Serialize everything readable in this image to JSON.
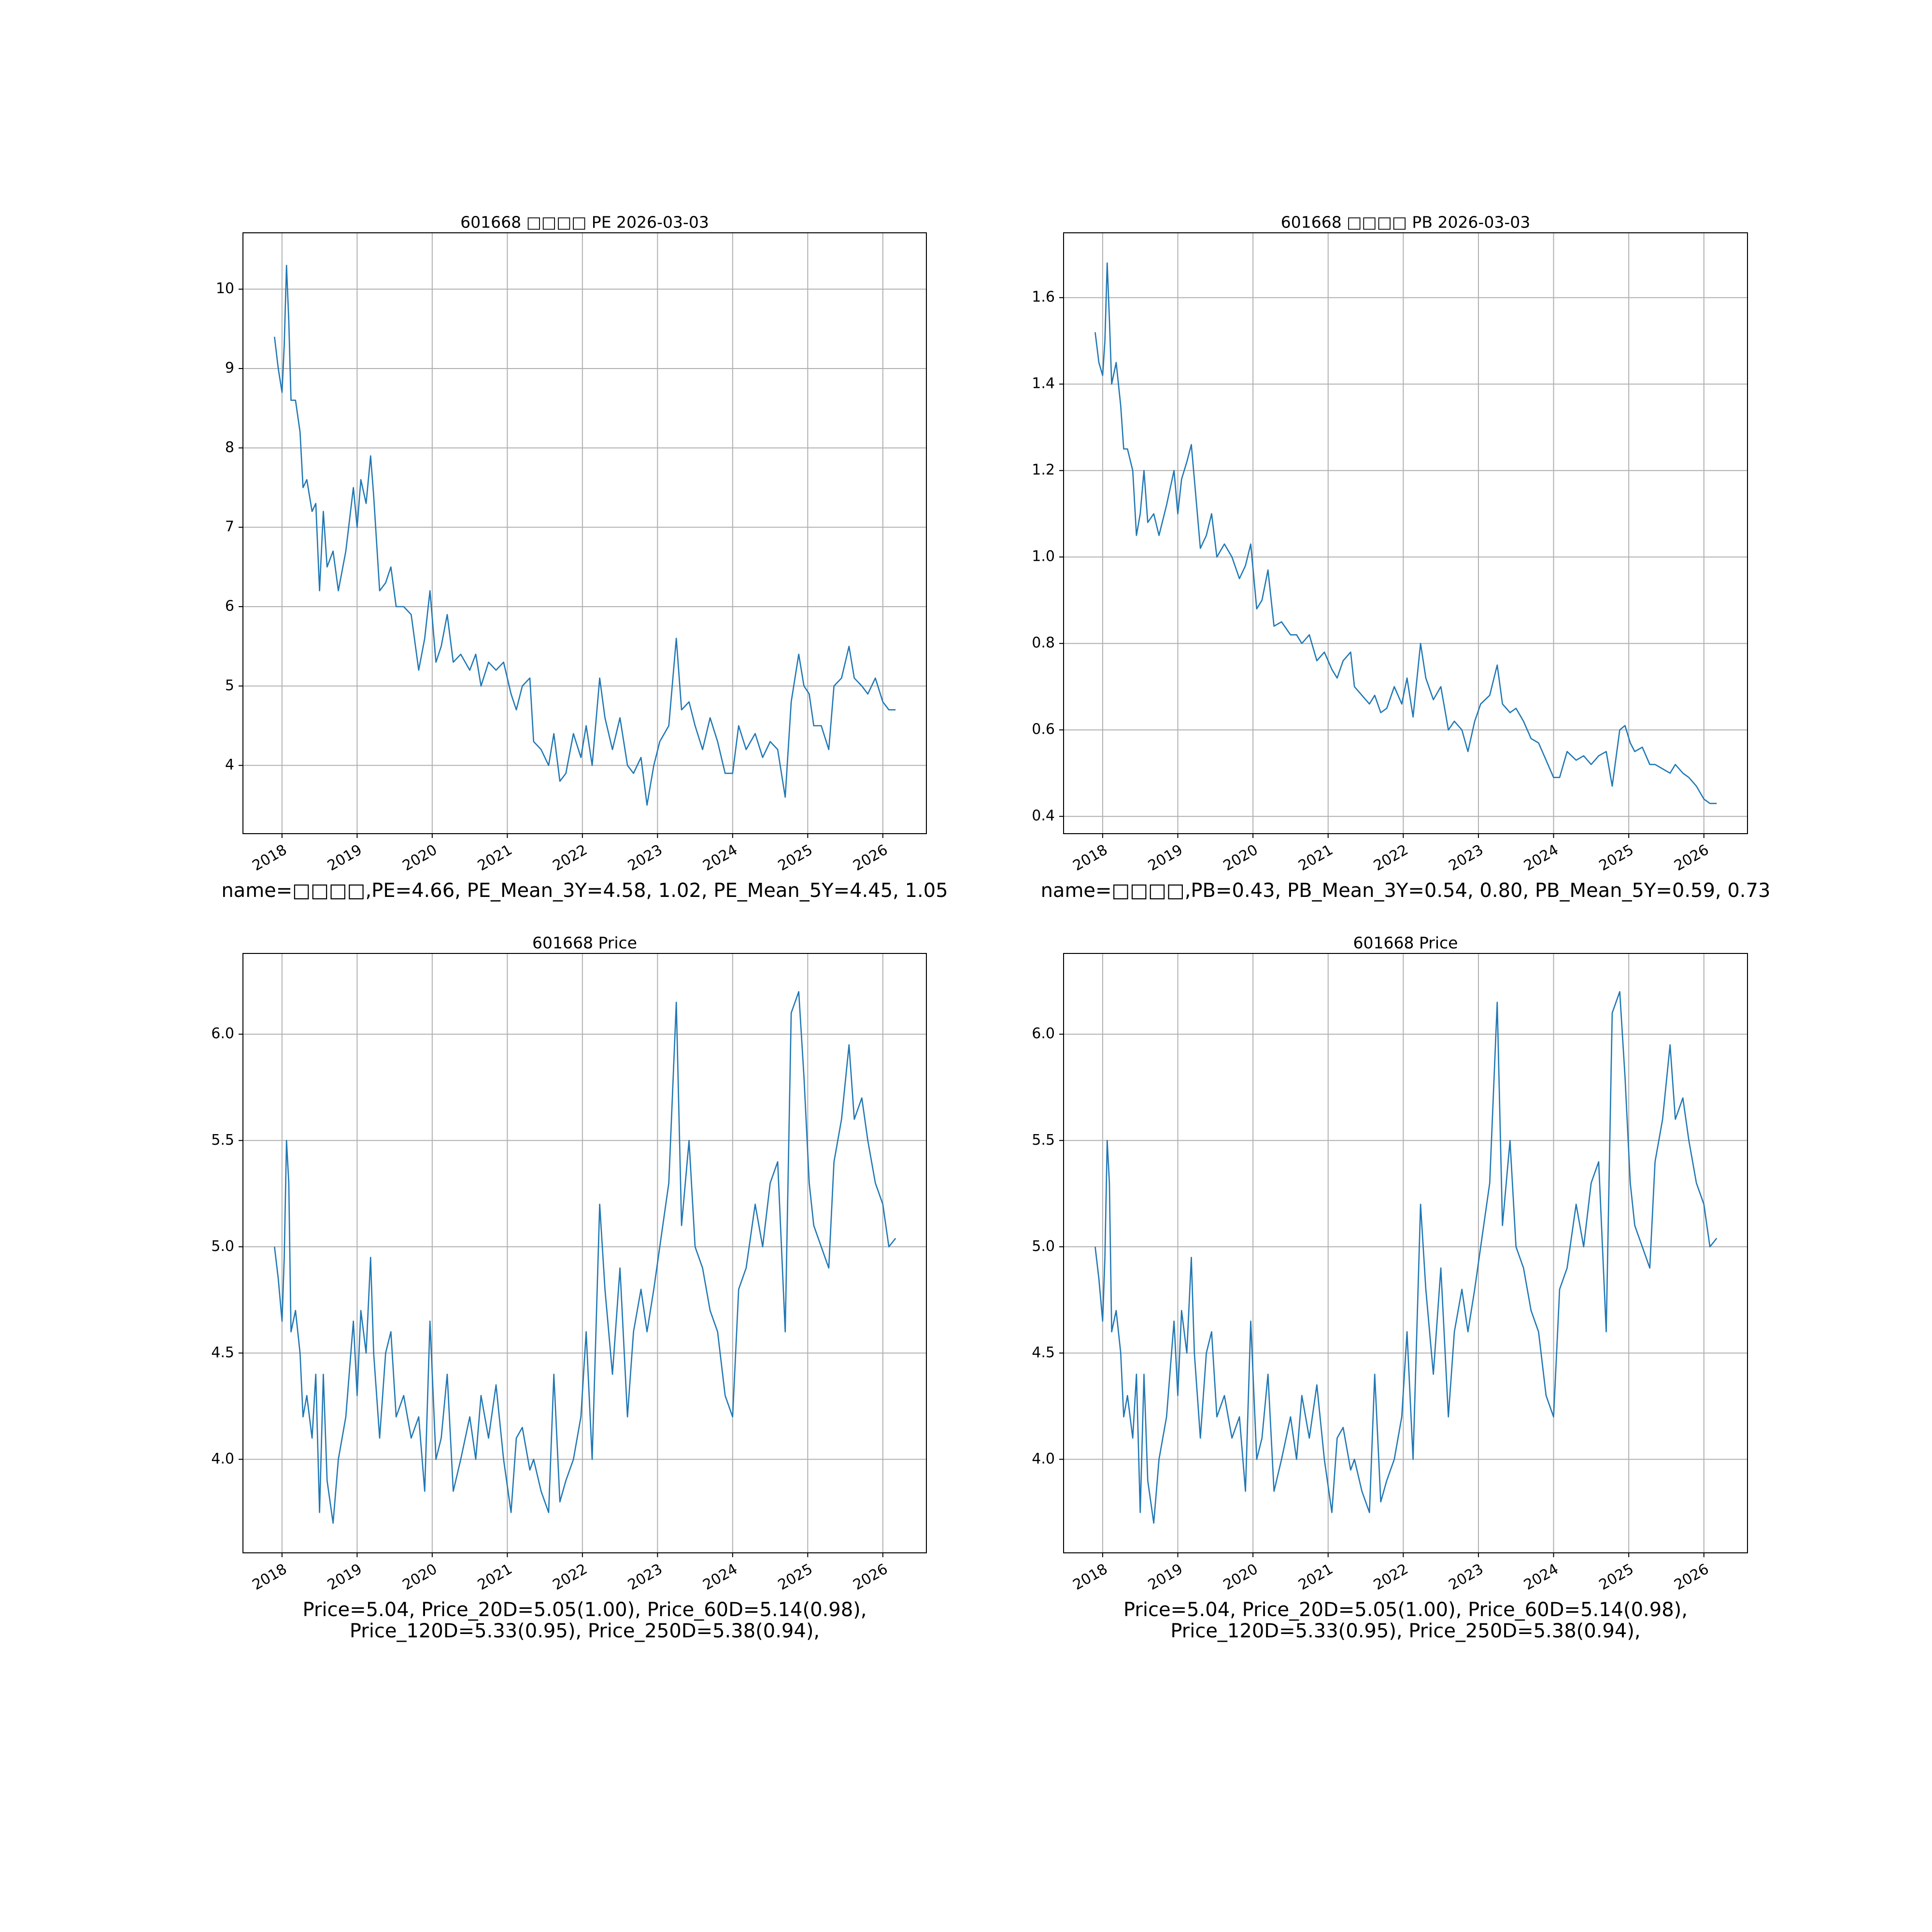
{
  "chart_data": [
    {
      "type": "line",
      "title": "601668 □□□□ PE 2026-03-03",
      "caption": [
        "name=□□□□,PE=4.66, PE_Mean_3Y=4.58, 1.02, PE_Mean_5Y=4.45, 1.05"
      ],
      "color": "#1f77b4",
      "grid": true,
      "xlim": [
        2017.48,
        2026.58
      ],
      "xticks": [
        2018,
        2019,
        2020,
        2021,
        2022,
        2023,
        2024,
        2025,
        2026
      ],
      "ylim": [
        3.14,
        10.71
      ],
      "yticks": [
        4,
        5,
        6,
        7,
        8,
        9,
        10
      ],
      "x": [
        2017.9,
        2017.95,
        2018.0,
        2018.03,
        2018.06,
        2018.09,
        2018.12,
        2018.18,
        2018.24,
        2018.28,
        2018.33,
        2018.4,
        2018.45,
        2018.5,
        2018.55,
        2018.6,
        2018.68,
        2018.75,
        2018.85,
        2018.95,
        2019.0,
        2019.05,
        2019.12,
        2019.18,
        2019.22,
        2019.3,
        2019.38,
        2019.45,
        2019.52,
        2019.62,
        2019.72,
        2019.82,
        2019.9,
        2019.97,
        2020.05,
        2020.12,
        2020.2,
        2020.28,
        2020.38,
        2020.5,
        2020.58,
        2020.65,
        2020.75,
        2020.85,
        2020.95,
        2021.05,
        2021.12,
        2021.2,
        2021.3,
        2021.35,
        2021.45,
        2021.55,
        2021.62,
        2021.7,
        2021.78,
        2021.88,
        2021.98,
        2022.05,
        2022.13,
        2022.23,
        2022.3,
        2022.4,
        2022.5,
        2022.6,
        2022.68,
        2022.78,
        2022.86,
        2022.95,
        2023.03,
        2023.15,
        2023.25,
        2023.32,
        2023.42,
        2023.5,
        2023.6,
        2023.7,
        2023.8,
        2023.9,
        2024.0,
        2024.08,
        2024.18,
        2024.3,
        2024.4,
        2024.5,
        2024.6,
        2024.7,
        2024.78,
        2024.88,
        2024.95,
        2025.02,
        2025.08,
        2025.18,
        2025.28,
        2025.35,
        2025.45,
        2025.55,
        2025.62,
        2025.72,
        2025.8,
        2025.9,
        2026.0,
        2026.08,
        2026.17
      ],
      "values": [
        9.4,
        9.0,
        8.7,
        9.3,
        10.3,
        9.6,
        8.6,
        8.6,
        8.2,
        7.5,
        7.6,
        7.2,
        7.3,
        6.2,
        7.2,
        6.5,
        6.7,
        6.2,
        6.7,
        7.5,
        7.0,
        7.6,
        7.3,
        7.9,
        7.4,
        6.2,
        6.3,
        6.5,
        6.0,
        6.0,
        5.9,
        5.2,
        5.6,
        6.2,
        5.3,
        5.5,
        5.9,
        5.3,
        5.4,
        5.2,
        5.4,
        5.0,
        5.3,
        5.2,
        5.3,
        4.9,
        4.7,
        5.0,
        5.1,
        4.3,
        4.2,
        4.0,
        4.4,
        3.8,
        3.9,
        4.4,
        4.1,
        4.5,
        4.0,
        5.1,
        4.6,
        4.2,
        4.6,
        4.0,
        3.9,
        4.1,
        3.5,
        4.0,
        4.3,
        4.5,
        5.6,
        4.7,
        4.8,
        4.5,
        4.2,
        4.6,
        4.3,
        3.9,
        3.9,
        4.5,
        4.2,
        4.4,
        4.1,
        4.3,
        4.2,
        3.6,
        4.8,
        5.4,
        5.0,
        4.9,
        4.5,
        4.5,
        4.2,
        5.0,
        5.1,
        5.5,
        5.1,
        5.0,
        4.9,
        5.1,
        4.8,
        4.7,
        4.7
      ]
    },
    {
      "type": "line",
      "title": "601668 □□□□ PB 2026-03-03",
      "caption": [
        "name=□□□□,PB=0.43, PB_Mean_3Y=0.54, 0.80, PB_Mean_5Y=0.59, 0.73"
      ],
      "color": "#1f77b4",
      "grid": true,
      "xlim": [
        2017.48,
        2026.58
      ],
      "xticks": [
        2018,
        2019,
        2020,
        2021,
        2022,
        2023,
        2024,
        2025,
        2026
      ],
      "ylim": [
        0.36,
        1.75
      ],
      "yticks": [
        0.4,
        0.6,
        0.8,
        {
          "value": 1,
          "label": "1.0"
        },
        1.2,
        1.4,
        1.6
      ],
      "x": [
        2017.9,
        2017.95,
        2018.0,
        2018.03,
        2018.06,
        2018.09,
        2018.12,
        2018.18,
        2018.24,
        2018.28,
        2018.33,
        2018.4,
        2018.45,
        2018.5,
        2018.55,
        2018.6,
        2018.68,
        2018.75,
        2018.85,
        2018.95,
        2019.0,
        2019.05,
        2019.12,
        2019.18,
        2019.22,
        2019.3,
        2019.38,
        2019.45,
        2019.52,
        2019.62,
        2019.72,
        2019.82,
        2019.9,
        2019.97,
        2020.05,
        2020.12,
        2020.2,
        2020.28,
        2020.38,
        2020.5,
        2020.58,
        2020.65,
        2020.75,
        2020.85,
        2020.95,
        2021.05,
        2021.12,
        2021.2,
        2021.3,
        2021.35,
        2021.45,
        2021.55,
        2021.62,
        2021.7,
        2021.78,
        2021.88,
        2021.98,
        2022.05,
        2022.13,
        2022.23,
        2022.3,
        2022.4,
        2022.5,
        2022.6,
        2022.68,
        2022.78,
        2022.86,
        2022.95,
        2023.03,
        2023.15,
        2023.25,
        2023.32,
        2023.42,
        2023.5,
        2023.6,
        2023.7,
        2023.8,
        2023.9,
        2024.0,
        2024.08,
        2024.18,
        2024.3,
        2024.4,
        2024.5,
        2024.6,
        2024.7,
        2024.78,
        2024.88,
        2024.95,
        2025.02,
        2025.08,
        2025.18,
        2025.28,
        2025.35,
        2025.45,
        2025.55,
        2025.62,
        2025.72,
        2025.8,
        2025.9,
        2026.0,
        2026.08,
        2026.17
      ],
      "values": [
        1.52,
        1.45,
        1.42,
        1.5,
        1.68,
        1.55,
        1.4,
        1.45,
        1.35,
        1.25,
        1.25,
        1.2,
        1.05,
        1.1,
        1.2,
        1.08,
        1.1,
        1.05,
        1.12,
        1.2,
        1.1,
        1.18,
        1.22,
        1.26,
        1.18,
        1.02,
        1.05,
        1.1,
        1.0,
        1.03,
        1.0,
        0.95,
        0.98,
        1.03,
        0.88,
        0.9,
        0.97,
        0.84,
        0.85,
        0.82,
        0.82,
        0.8,
        0.82,
        0.76,
        0.78,
        0.74,
        0.72,
        0.76,
        0.78,
        0.7,
        0.68,
        0.66,
        0.68,
        0.64,
        0.65,
        0.7,
        0.66,
        0.72,
        0.63,
        0.8,
        0.72,
        0.67,
        0.7,
        0.6,
        0.62,
        0.6,
        0.55,
        0.62,
        0.66,
        0.68,
        0.75,
        0.66,
        0.64,
        0.65,
        0.62,
        0.58,
        0.57,
        0.53,
        0.49,
        0.49,
        0.55,
        0.53,
        0.54,
        0.52,
        0.54,
        0.55,
        0.47,
        0.6,
        0.61,
        0.57,
        0.55,
        0.56,
        0.52,
        0.52,
        0.51,
        0.5,
        0.52,
        0.5,
        0.49,
        0.47,
        0.44,
        0.43,
        0.43
      ]
    },
    {
      "type": "line",
      "title": "601668 Price",
      "caption": [
        "Price=5.04, Price_20D=5.05(1.00), Price_60D=5.14(0.98),",
        "Price_120D=5.33(0.95), Price_250D=5.38(0.94),"
      ],
      "color": "#1f77b4",
      "grid": true,
      "xlim": [
        2017.48,
        2026.58
      ],
      "xticks": [
        2018,
        2019,
        2020,
        2021,
        2022,
        2023,
        2024,
        2025,
        2026
      ],
      "ylim": [
        3.56,
        6.38
      ],
      "yticks": [
        {
          "value": 4,
          "label": "4.0"
        },
        4.5,
        {
          "value": 5,
          "label": "5.0"
        },
        5.5,
        {
          "value": 6,
          "label": "6.0"
        }
      ],
      "x": [
        2017.9,
        2017.95,
        2018.0,
        2018.03,
        2018.06,
        2018.09,
        2018.12,
        2018.18,
        2018.24,
        2018.28,
        2018.33,
        2018.4,
        2018.45,
        2018.5,
        2018.55,
        2018.6,
        2018.68,
        2018.75,
        2018.85,
        2018.95,
        2019.0,
        2019.05,
        2019.12,
        2019.18,
        2019.22,
        2019.3,
        2019.38,
        2019.45,
        2019.52,
        2019.62,
        2019.72,
        2019.82,
        2019.9,
        2019.97,
        2020.05,
        2020.12,
        2020.2,
        2020.28,
        2020.38,
        2020.5,
        2020.58,
        2020.65,
        2020.75,
        2020.85,
        2020.95,
        2021.05,
        2021.12,
        2021.2,
        2021.3,
        2021.35,
        2021.45,
        2021.55,
        2021.62,
        2021.7,
        2021.78,
        2021.88,
        2021.98,
        2022.05,
        2022.13,
        2022.23,
        2022.3,
        2022.4,
        2022.5,
        2022.6,
        2022.68,
        2022.78,
        2022.86,
        2022.95,
        2023.03,
        2023.15,
        2023.25,
        2023.32,
        2023.42,
        2023.5,
        2023.6,
        2023.7,
        2023.8,
        2023.9,
        2024.0,
        2024.08,
        2024.18,
        2024.3,
        2024.4,
        2024.5,
        2024.6,
        2024.7,
        2024.78,
        2024.88,
        2024.95,
        2025.02,
        2025.08,
        2025.18,
        2025.28,
        2025.35,
        2025.45,
        2025.55,
        2025.62,
        2025.72,
        2025.8,
        2025.9,
        2026.0,
        2026.08,
        2026.17
      ],
      "values": [
        5.0,
        4.85,
        4.65,
        4.95,
        5.5,
        5.3,
        4.6,
        4.7,
        4.5,
        4.2,
        4.3,
        4.1,
        4.4,
        3.75,
        4.4,
        3.9,
        3.7,
        4.0,
        4.2,
        4.65,
        4.3,
        4.7,
        4.5,
        4.95,
        4.5,
        4.1,
        4.5,
        4.6,
        4.2,
        4.3,
        4.1,
        4.2,
        3.85,
        4.65,
        4.0,
        4.1,
        4.4,
        3.85,
        4.0,
        4.2,
        4.0,
        4.3,
        4.1,
        4.35,
        4.0,
        3.75,
        4.1,
        4.15,
        3.95,
        4.0,
        3.85,
        3.75,
        4.4,
        3.8,
        3.9,
        4.0,
        4.2,
        4.6,
        4.0,
        5.2,
        4.8,
        4.4,
        4.9,
        4.2,
        4.6,
        4.8,
        4.6,
        4.8,
        5.0,
        5.3,
        6.15,
        5.1,
        5.5,
        5.0,
        4.9,
        4.7,
        4.6,
        4.3,
        4.2,
        4.8,
        4.9,
        5.2,
        5.0,
        5.3,
        5.4,
        4.6,
        6.1,
        6.2,
        5.8,
        5.3,
        5.1,
        5.0,
        4.9,
        5.4,
        5.6,
        5.95,
        5.6,
        5.7,
        5.5,
        5.3,
        5.2,
        5.0,
        5.04
      ]
    },
    {
      "type": "line",
      "title": "601668 Price",
      "caption": [
        "Price=5.04, Price_20D=5.05(1.00), Price_60D=5.14(0.98),",
        "Price_120D=5.33(0.95), Price_250D=5.38(0.94),"
      ],
      "color": "#1f77b4",
      "grid": true,
      "xlim": [
        2017.48,
        2026.58
      ],
      "xticks": [
        2018,
        2019,
        2020,
        2021,
        2022,
        2023,
        2024,
        2025,
        2026
      ],
      "ylim": [
        3.56,
        6.38
      ],
      "yticks": [
        {
          "value": 4,
          "label": "4.0"
        },
        4.5,
        {
          "value": 5,
          "label": "5.0"
        },
        5.5,
        {
          "value": 6,
          "label": "6.0"
        }
      ],
      "x": [
        2017.9,
        2017.95,
        2018.0,
        2018.03,
        2018.06,
        2018.09,
        2018.12,
        2018.18,
        2018.24,
        2018.28,
        2018.33,
        2018.4,
        2018.45,
        2018.5,
        2018.55,
        2018.6,
        2018.68,
        2018.75,
        2018.85,
        2018.95,
        2019.0,
        2019.05,
        2019.12,
        2019.18,
        2019.22,
        2019.3,
        2019.38,
        2019.45,
        2019.52,
        2019.62,
        2019.72,
        2019.82,
        2019.9,
        2019.97,
        2020.05,
        2020.12,
        2020.2,
        2020.28,
        2020.38,
        2020.5,
        2020.58,
        2020.65,
        2020.75,
        2020.85,
        2020.95,
        2021.05,
        2021.12,
        2021.2,
        2021.3,
        2021.35,
        2021.45,
        2021.55,
        2021.62,
        2021.7,
        2021.78,
        2021.88,
        2021.98,
        2022.05,
        2022.13,
        2022.23,
        2022.3,
        2022.4,
        2022.5,
        2022.6,
        2022.68,
        2022.78,
        2022.86,
        2022.95,
        2023.03,
        2023.15,
        2023.25,
        2023.32,
        2023.42,
        2023.5,
        2023.6,
        2023.7,
        2023.8,
        2023.9,
        2024.0,
        2024.08,
        2024.18,
        2024.3,
        2024.4,
        2024.5,
        2024.6,
        2024.7,
        2024.78,
        2024.88,
        2024.95,
        2025.02,
        2025.08,
        2025.18,
        2025.28,
        2025.35,
        2025.45,
        2025.55,
        2025.62,
        2025.72,
        2025.8,
        2025.9,
        2026.0,
        2026.08,
        2026.17
      ],
      "values": [
        5.0,
        4.85,
        4.65,
        4.95,
        5.5,
        5.3,
        4.6,
        4.7,
        4.5,
        4.2,
        4.3,
        4.1,
        4.4,
        3.75,
        4.4,
        3.9,
        3.7,
        4.0,
        4.2,
        4.65,
        4.3,
        4.7,
        4.5,
        4.95,
        4.5,
        4.1,
        4.5,
        4.6,
        4.2,
        4.3,
        4.1,
        4.2,
        3.85,
        4.65,
        4.0,
        4.1,
        4.4,
        3.85,
        4.0,
        4.2,
        4.0,
        4.3,
        4.1,
        4.35,
        4.0,
        3.75,
        4.1,
        4.15,
        3.95,
        4.0,
        3.85,
        3.75,
        4.4,
        3.8,
        3.9,
        4.0,
        4.2,
        4.6,
        4.0,
        5.2,
        4.8,
        4.4,
        4.9,
        4.2,
        4.6,
        4.8,
        4.6,
        4.8,
        5.0,
        5.3,
        6.15,
        5.1,
        5.5,
        5.0,
        4.9,
        4.7,
        4.6,
        4.3,
        4.2,
        4.8,
        4.9,
        5.2,
        5.0,
        5.3,
        5.4,
        4.6,
        6.1,
        6.2,
        5.8,
        5.3,
        5.1,
        5.0,
        4.9,
        5.4,
        5.6,
        5.95,
        5.6,
        5.7,
        5.5,
        5.3,
        5.2,
        5.0,
        5.04
      ]
    }
  ]
}
